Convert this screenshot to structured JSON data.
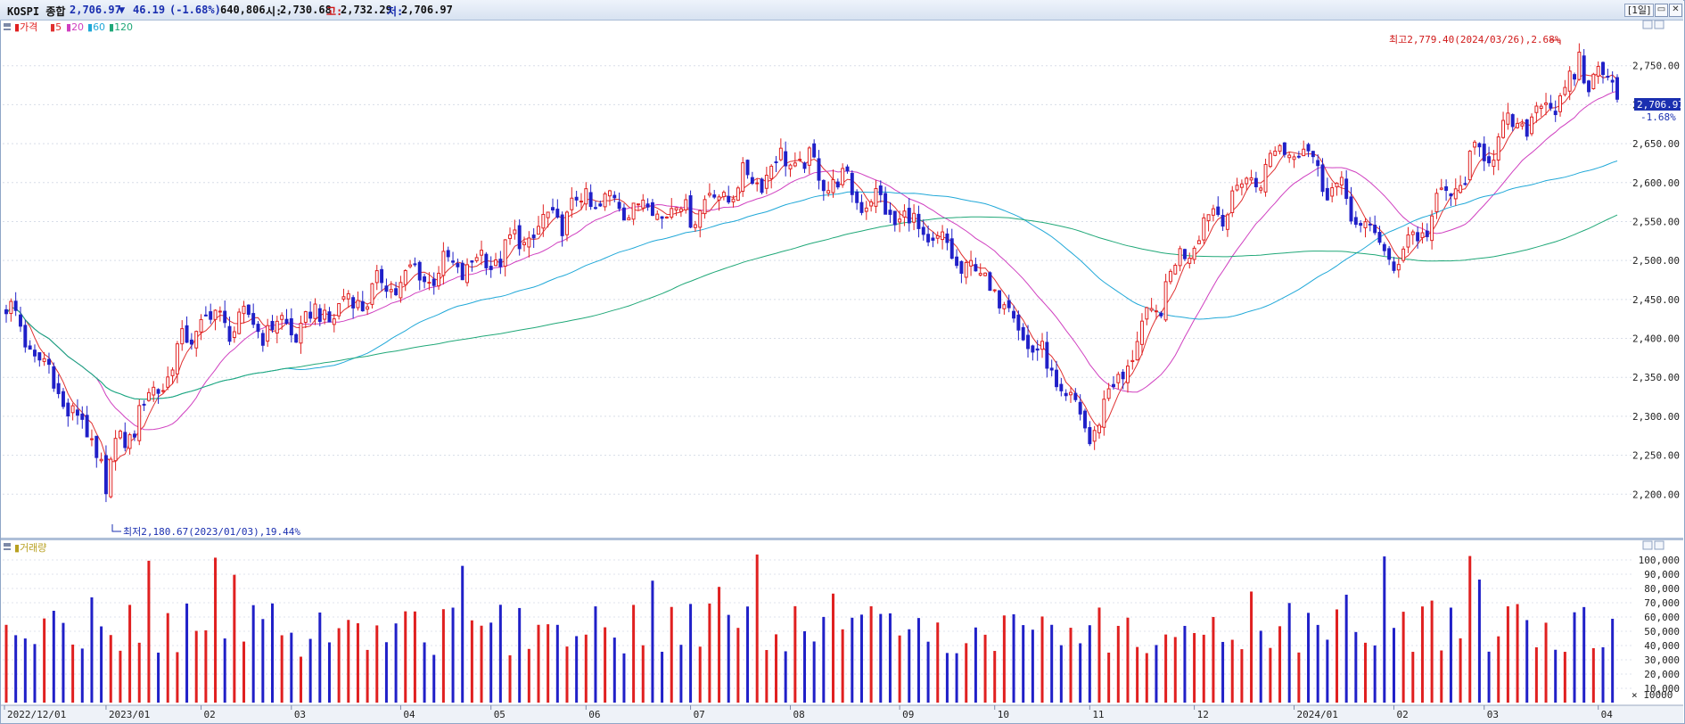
{
  "header": {
    "index_name": "KOSPI 종합",
    "price": "2,706.97",
    "change_arrow": "▼",
    "change": "46.19",
    "change_pct": "(-1.68%)",
    "volume": "640,806",
    "open_label": "시:",
    "open": "2,730.68",
    "high_label": "고:",
    "high": "2,732.29",
    "low_label": "저:",
    "low": "2,706.97",
    "period_button": "1일"
  },
  "legend": {
    "price": "가격",
    "ma5": "5",
    "ma20": "20",
    "ma60": "60",
    "ma120": "120",
    "volume": "거래량"
  },
  "annotations": {
    "high": "최고2,779.40(2024/03/26),2.68%",
    "low": "최저2,180.67(2023/01/03),19.44%",
    "current_price": "2,706.97",
    "current_pct": "-1.68%"
  },
  "colors": {
    "up": "#e02020",
    "down": "#2020c8",
    "ma5": "#e03030",
    "ma20": "#d040c0",
    "ma60": "#20a8d8",
    "ma120": "#20a878",
    "header_text": "#1a2fb0"
  },
  "chart_data": [
    {
      "type": "candlestick",
      "title": "KOSPI 종합",
      "ylim": [
        2150,
        2800
      ],
      "y_ticks": [
        "2,200.00",
        "2,250.00",
        "2,300.00",
        "2,350.00",
        "2,400.00",
        "2,450.00",
        "2,500.00",
        "2,550.00",
        "2,600.00",
        "2,650.00",
        "2,700.00",
        "2,750.00"
      ],
      "x_labels": [
        "2022/12/01",
        "2023/01",
        "02",
        "03",
        "04",
        "05",
        "06",
        "07",
        "08",
        "09",
        "10",
        "11",
        "12",
        "2024/01",
        "02",
        "03",
        "04"
      ],
      "close_by_month": [
        {
          "month": "2022/12",
          "close": 2236
        },
        {
          "month": "2023/01",
          "close": 2425
        },
        {
          "month": "2023/02",
          "close": 2412
        },
        {
          "month": "2023/03",
          "close": 2476
        },
        {
          "month": "2023/04",
          "close": 2501
        },
        {
          "month": "2023/05",
          "close": 2577
        },
        {
          "month": "2023/06",
          "close": 2564
        },
        {
          "month": "2023/07",
          "close": 2632
        },
        {
          "month": "2023/08",
          "close": 2556
        },
        {
          "month": "2023/09",
          "close": 2465
        },
        {
          "month": "2023/10",
          "close": 2277
        },
        {
          "month": "2023/11",
          "close": 2535
        },
        {
          "month": "2023/12",
          "close": 2655
        },
        {
          "month": "2024/01",
          "close": 2497
        },
        {
          "month": "2024/02",
          "close": 2642
        },
        {
          "month": "2024/03",
          "close": 2747
        },
        {
          "month": "2024/04",
          "close": 2707
        }
      ],
      "series": [
        {
          "name": "5",
          "color": "#e03030"
        },
        {
          "name": "20",
          "color": "#d040c0"
        },
        {
          "name": "60",
          "color": "#20a8d8"
        },
        {
          "name": "120",
          "color": "#20a878"
        }
      ],
      "high_point": {
        "date": "2024/03/26",
        "value": 2779.4
      },
      "low_point": {
        "date": "2023/01/03",
        "value": 2180.67
      }
    },
    {
      "type": "bar",
      "title": "거래량",
      "ylim": [
        0,
        110000
      ],
      "y_ticks": [
        "10,000",
        "20,000",
        "30,000",
        "40,000",
        "50,000",
        "60,000",
        "70,000",
        "80,000",
        "90,000",
        "100,000"
      ],
      "unit_label": "× 10000"
    }
  ]
}
